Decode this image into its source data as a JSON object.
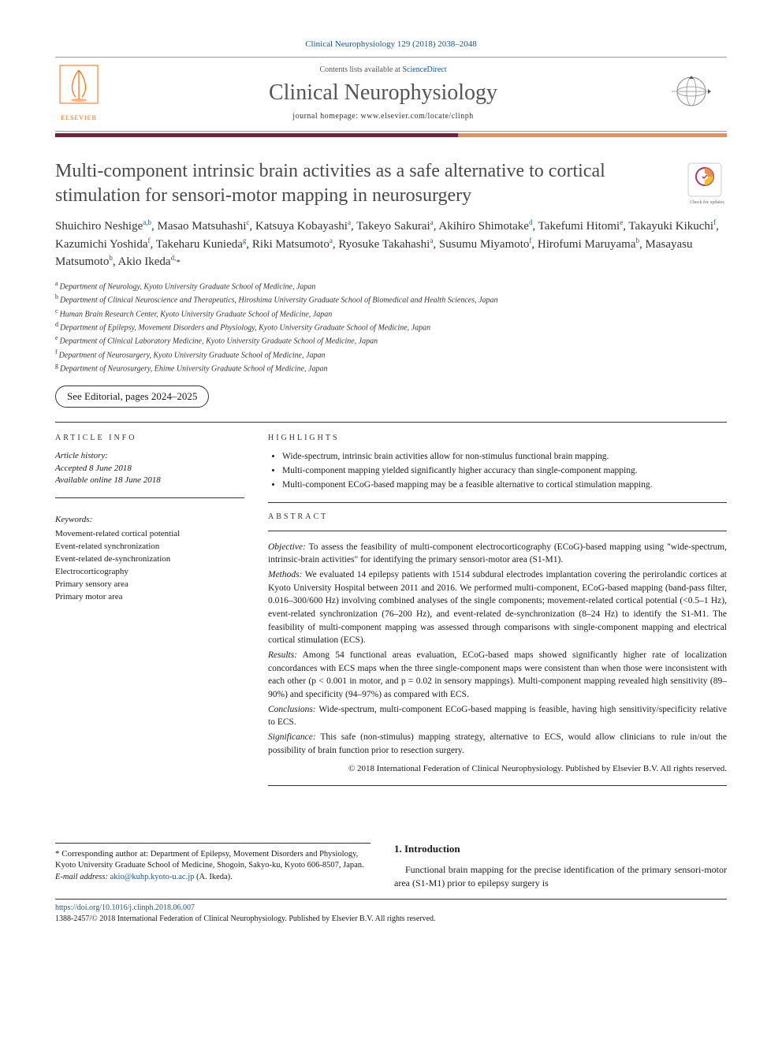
{
  "citation": "Clinical Neurophysiology 129 (2018) 2038–2048",
  "header": {
    "contents_prefix": "Contents lists available at ",
    "contents_link": "ScienceDirect",
    "journal_name": "Clinical Neurophysiology",
    "homepage_prefix": "journal homepage: ",
    "homepage_url": "www.elsevier.com/locate/clinph",
    "publisher_name": "ELSEVIER"
  },
  "title": "Multi-component intrinsic brain activities as a safe alternative to cortical stimulation for sensori-motor mapping in neurosurgery",
  "check_updates_label": "Check for updates",
  "authors_html": "Shuichiro Neshige<sup>a,b</sup>, Masao Matsuhashi<sup>c</sup>, Katsuya Kobayashi<sup>a</sup>, Takeyo Sakurai<sup>a</sup>, Akihiro Shimotake<sup>d</sup>, Takefumi Hitomi<sup>e</sup>, Takayuki Kikuchi<sup>f</sup>, Kazumichi Yoshida<sup>f</sup>, Takeharu Kunieda<sup>g</sup>, Riki Matsumoto<sup>a</sup>, Ryosuke Takahashi<sup>a</sup>, Susumu Miyamoto<sup>f</sup>, Hirofumi Maruyama<sup>b</sup>, Masayasu Matsumoto<sup>b</sup>, Akio Ikeda<sup>d,</sup><span class='asterisk'>*</span>",
  "affiliations": [
    {
      "sup": "a",
      "text": "Department of Neurology, Kyoto University Graduate School of Medicine, Japan"
    },
    {
      "sup": "b",
      "text": "Department of Clinical Neuroscience and Therapeutics, Hiroshima University Graduate School of Biomedical and Health Sciences, Japan"
    },
    {
      "sup": "c",
      "text": "Human Brain Research Center, Kyoto University Graduate School of Medicine, Japan"
    },
    {
      "sup": "d",
      "text": "Department of Epilepsy, Movement Disorders and Physiology, Kyoto University Graduate School of Medicine, Japan"
    },
    {
      "sup": "e",
      "text": "Department of Clinical Laboratory Medicine, Kyoto University Graduate School of Medicine, Japan"
    },
    {
      "sup": "f",
      "text": "Department of Neurosurgery, Kyoto University Graduate School of Medicine, Japan"
    },
    {
      "sup": "g",
      "text": "Department of Neurosurgery, Ehime University Graduate School of Medicine, Japan"
    }
  ],
  "editorial_note": "See Editorial, pages 2024–2025",
  "article_info": {
    "heading": "ARTICLE INFO",
    "history_label": "Article history:",
    "accepted": "Accepted 8 June 2018",
    "online": "Available online 18 June 2018",
    "keywords_label": "Keywords:",
    "keywords": [
      "Movement-related cortical potential",
      "Event-related synchronization",
      "Event-related de-synchronization",
      "Electrocorticography",
      "Primary sensory area",
      "Primary motor area"
    ]
  },
  "highlights": {
    "heading": "HIGHLIGHTS",
    "items": [
      "Wide-spectrum, intrinsic brain activities allow for non-stimulus functional brain mapping.",
      "Multi-component mapping yielded significantly higher accuracy than single-component mapping.",
      "Multi-component ECoG-based mapping may be a feasible alternative to cortical stimulation mapping."
    ]
  },
  "abstract": {
    "heading": "ABSTRACT",
    "objective_label": "Objective:",
    "objective": " To assess the feasibility of multi-component electrocorticography (ECoG)-based mapping using \"wide-spectrum, intrinsic-brain activities\" for identifying the primary sensori-motor area (S1-M1).",
    "methods_label": "Methods:",
    "methods": " We evaluated 14 epilepsy patients with 1514 subdural electrodes implantation covering the perirolandic cortices at Kyoto University Hospital between 2011 and 2016. We performed multi-component, ECoG-based mapping (band-pass filter, 0.016–300/600 Hz) involving combined analyses of the single components; movement-related cortical potential (<0.5–1 Hz), event-related synchronization (76–200 Hz), and event-related de-synchronization (8–24 Hz) to identify the S1-M1. The feasibility of multi-component mapping was assessed through comparisons with single-component mapping and electrical cortical stimulation (ECS).",
    "results_label": "Results:",
    "results": " Among 54 functional areas evaluation, ECoG-based maps showed significantly higher rate of localization concordances with ECS maps when the three single-component maps were consistent than when those were inconsistent with each other (p < 0.001 in motor, and p = 0.02 in sensory mappings). Multi-component mapping revealed high sensitivity (89–90%) and specificity (94–97%) as compared with ECS.",
    "conclusions_label": "Conclusions:",
    "conclusions": " Wide-spectrum, multi-component ECoG-based mapping is feasible, having high sensitivity/specificity relative to ECS.",
    "significance_label": "Significance:",
    "significance": " This safe (non-stimulus) mapping strategy, alternative to ECS, would allow clinicians to rule in/out the possibility of brain function prior to resection surgery.",
    "copyright": "© 2018 International Federation of Clinical Neurophysiology. Published by Elsevier B.V. All rights reserved."
  },
  "corresponding": {
    "label": "* Corresponding author at:",
    "text": " Department of Epilepsy, Movement Disorders and Physiology, Kyoto University Graduate School of Medicine, Shogoin, Sakyo-ku, Kyoto 606-8507, Japan.",
    "email_label": "E-mail address:",
    "email": " akio@kuhp.kyoto-u.ac.jp",
    "email_name": " (A. Ikeda)."
  },
  "intro": {
    "heading": "1. Introduction",
    "text": "Functional brain mapping for the precise identification of the primary sensori-motor area (S1-M1) prior to epilepsy surgery is"
  },
  "footer": {
    "doi": "https://doi.org/10.1016/j.clinph.2018.06.007",
    "issn_line": "1388-2457/© 2018 International Federation of Clinical Neurophysiology. Published by Elsevier B.V. All rights reserved."
  },
  "colors": {
    "link": "#1a5490",
    "bar_left": "#7b1e3d",
    "bar_right": "#e89050",
    "elsevier_orange": "#ff6900"
  }
}
